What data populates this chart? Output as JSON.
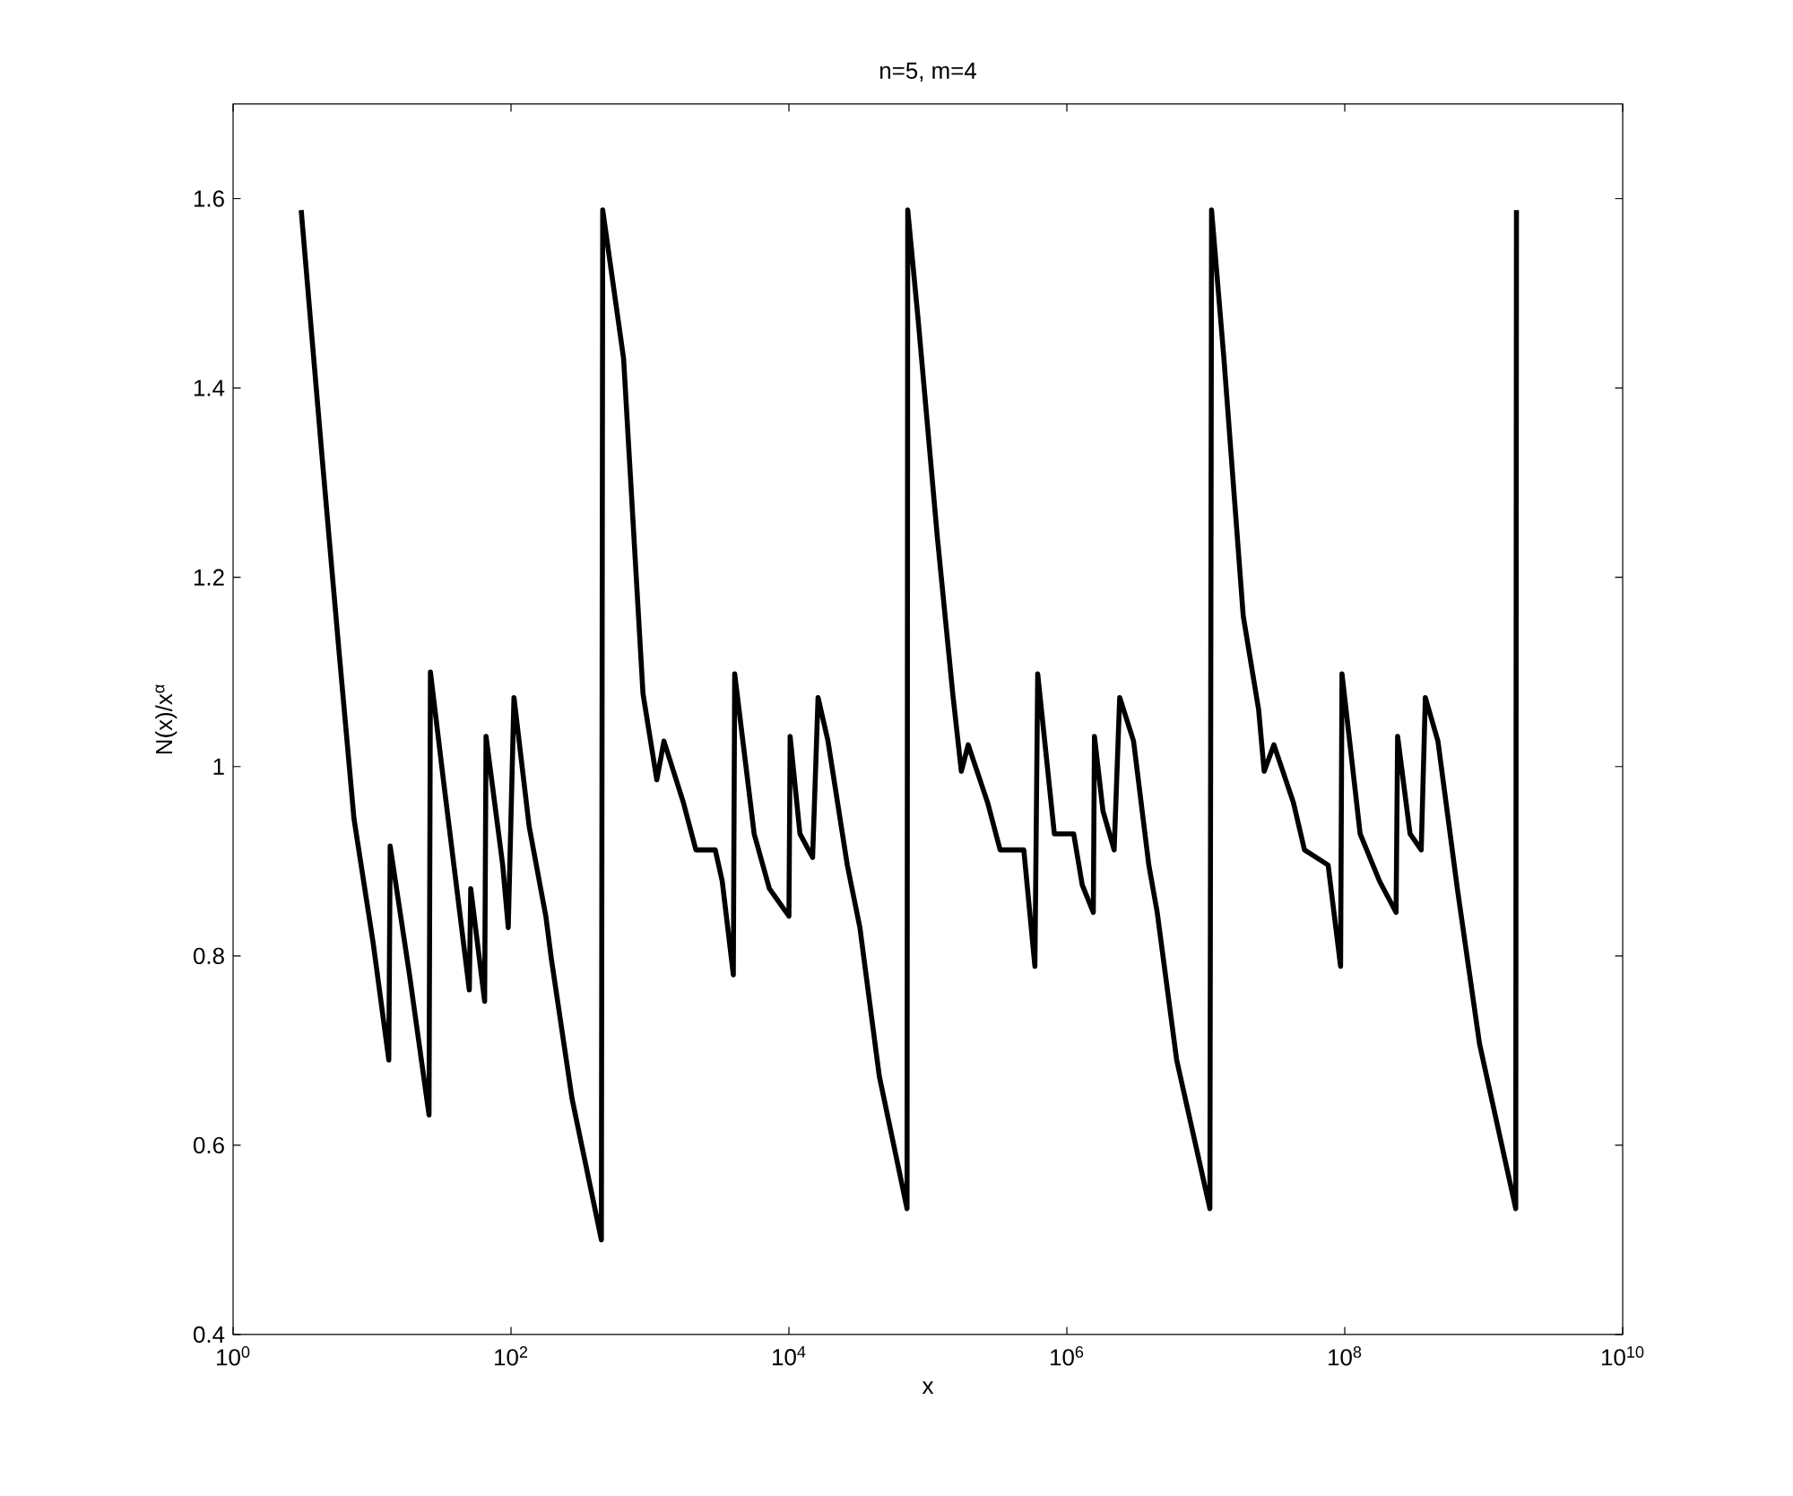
{
  "chart_data": {
    "type": "line",
    "title": "n=5, m=4",
    "xlabel": "x",
    "ylabel": "N(x)/x$^{α}$",
    "log": "x",
    "xlim": [
      1,
      10000000000.0
    ],
    "ylim": [
      0.4,
      1.7
    ],
    "xticks": [
      {
        "value": 1,
        "label": "10$^{0}$"
      },
      {
        "value": 100,
        "label": "10$^{2}$"
      },
      {
        "value": 10000.0,
        "label": "10$^{4}$"
      },
      {
        "value": 1000000.0,
        "label": "10$^{6}$"
      },
      {
        "value": 100000000.0,
        "label": "10$^{8}$"
      },
      {
        "value": 10000000000.0,
        "label": "10$^{10}$"
      }
    ],
    "yticks": [
      0.4,
      0.6,
      0.8,
      1,
      1.2,
      1.4,
      1.6
    ],
    "series": [
      {
        "color": "#000000",
        "x": [
          3.09,
          3.68,
          4.47,
          5.75,
          7.41,
          10.2,
          13.2,
          13.5,
          18.6,
          25.7,
          26.3,
          33.1,
          50.1,
          51.3,
          64.6,
          66.1,
          87.1,
          95.5,
          105,
          135,
          178,
          195,
          275,
          447,
          457,
          646,
          891,
          1120.0,
          1260.0,
          1740.0,
          2140.0,
          2950.0,
          3310.0,
          3980.0,
          4070.0,
          5620.0,
          7240.0,
          10000.0,
          10200.0,
          12000.0,
          14800.0,
          16200.0,
          19100.0,
          26300.0,
          32400.0,
          44700.0,
          70800.0,
          71600.0,
          85100.0,
          117000.0,
          151000.0,
          174000.0,
          195000.0,
          269000.0,
          331000.0,
          490000.0,
          589000.0,
          617000.0,
          813000.0,
          1120000.0,
          1290000.0,
          1550000.0,
          1580000.0,
          1820000.0,
          2190000.0,
          2400000.0,
          3020000.0,
          3890000.0,
          4470000.0,
          6170000.0,
          10700000.0,
          11000000.0,
          13500000.0,
          18600000.0,
          24000000.0,
          26300000.0,
          30900000.0,
          42700000.0,
          51300000.0,
          75900000.0,
          93300000.0,
          95500000.0,
          129000000.0,
          178000000.0,
          234000000.0,
          240000000.0,
          295000000.0,
          355000000.0,
          380000000.0,
          468000000.0,
          646000000.0,
          933000000.0,
          1700000000.0,
          1720000000.0
        ],
        "values": [
          1.588,
          1.456,
          1.31,
          1.126,
          0.945,
          0.813,
          0.69,
          0.916,
          0.78,
          0.632,
          1.1,
          0.978,
          0.764,
          0.871,
          0.752,
          1.032,
          0.896,
          0.83,
          1.073,
          0.937,
          0.842,
          0.797,
          0.649,
          0.5,
          1.588,
          1.431,
          1.077,
          0.986,
          1.027,
          0.962,
          0.912,
          0.912,
          0.879,
          0.78,
          1.098,
          0.929,
          0.871,
          0.842,
          1.032,
          0.929,
          0.904,
          1.073,
          1.027,
          0.896,
          0.83,
          0.673,
          0.533,
          1.588,
          1.472,
          1.242,
          1.077,
          0.995,
          1.023,
          0.962,
          0.912,
          0.912,
          0.789,
          1.098,
          0.929,
          0.929,
          0.875,
          0.846,
          1.032,
          0.953,
          0.912,
          1.073,
          1.027,
          0.896,
          0.846,
          0.69,
          0.533,
          1.588,
          1.431,
          1.159,
          1.06,
          0.995,
          1.023,
          0.962,
          0.912,
          0.896,
          0.789,
          1.098,
          0.929,
          0.879,
          0.846,
          1.032,
          0.929,
          0.912,
          1.073,
          1.027,
          0.871,
          0.707,
          0.533,
          1.588
        ]
      }
    ]
  }
}
